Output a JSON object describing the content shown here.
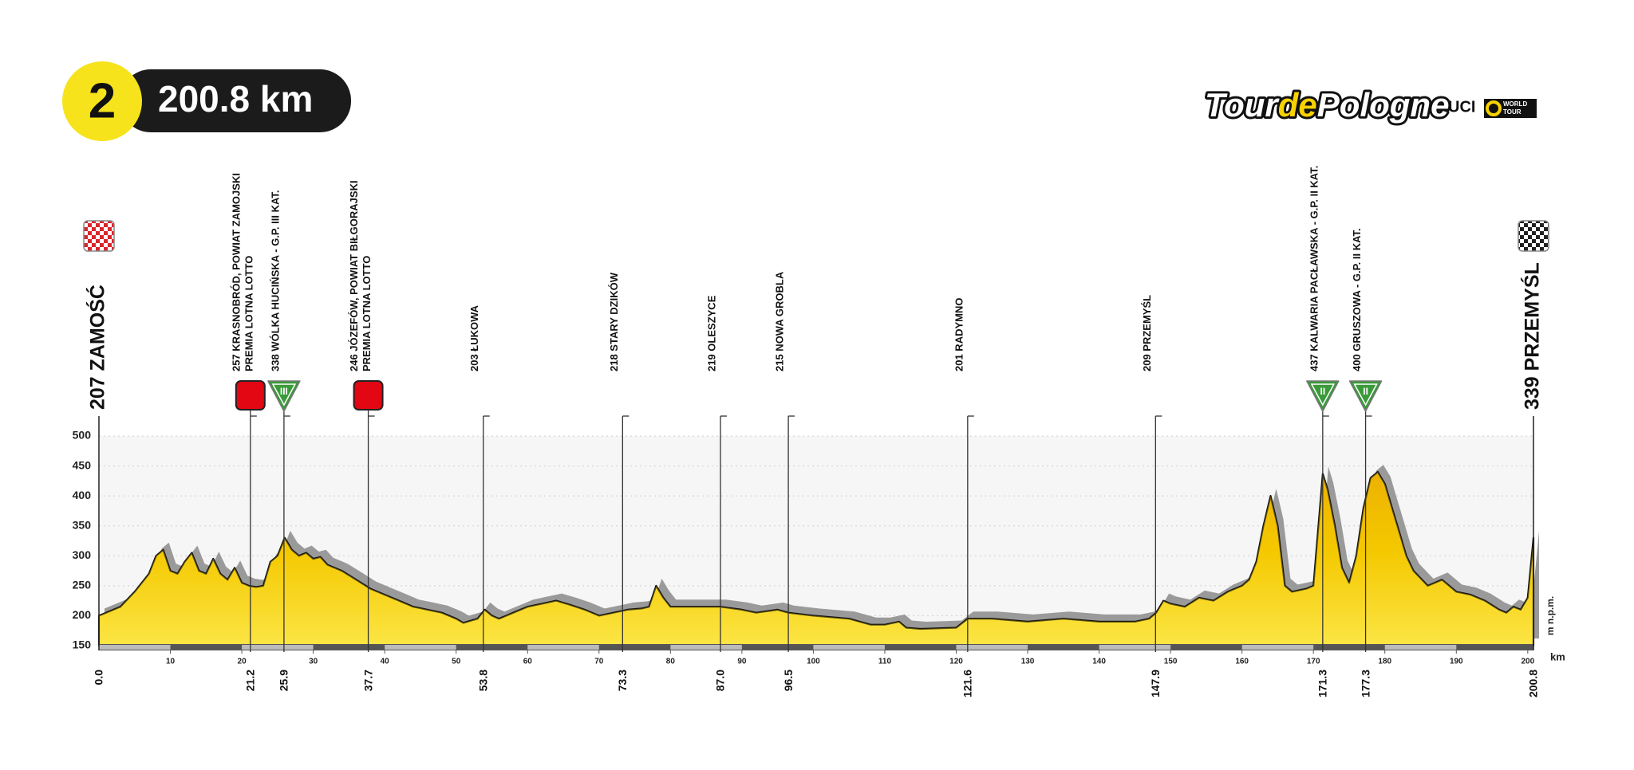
{
  "header": {
    "stage": "2",
    "distance": "200.8 km"
  },
  "logo": {
    "tour": "Tour",
    "de": "de",
    "pologne": "Pologne",
    "uci": "UCI",
    "world": "WORLD",
    "tour_word": "TOUR"
  },
  "chart_data": {
    "type": "area",
    "color": "#f7d200",
    "shadow_color": "#9a9a9a",
    "grid": true,
    "xlim": [
      0,
      200.8
    ],
    "xticks": [
      10,
      20,
      30,
      40,
      50,
      60,
      70,
      80,
      90,
      100,
      110,
      120,
      130,
      140,
      150,
      160,
      170,
      180,
      190,
      200
    ],
    "ylim": [
      150,
      500
    ],
    "yticks": [
      150,
      200,
      250,
      300,
      350,
      400,
      450,
      500
    ],
    "y_unit": "m n.p.m.",
    "x_unit": "km",
    "x": [
      0,
      3,
      5,
      7,
      8,
      9,
      10,
      11,
      12,
      13,
      14,
      15,
      16,
      17,
      18,
      19,
      20,
      21,
      22,
      23,
      24,
      25,
      26,
      27,
      28,
      29,
      30,
      31,
      32,
      34,
      36,
      38,
      40,
      42,
      44,
      46,
      48,
      50,
      51,
      53,
      54,
      55,
      56,
      58,
      60,
      62,
      64,
      66,
      68,
      70,
      72,
      74,
      76,
      77,
      78,
      79,
      80,
      84,
      87,
      90,
      92,
      95,
      96.5,
      100,
      105,
      108,
      110,
      112,
      113,
      115,
      120,
      121.6,
      125,
      130,
      135,
      140,
      145,
      147,
      148,
      149,
      150,
      152,
      154,
      156,
      158,
      160,
      161,
      162,
      163,
      164,
      165,
      166,
      167,
      169,
      170,
      171.3,
      172,
      173,
      174,
      175,
      176,
      177,
      178,
      179,
      180,
      181,
      182,
      183,
      184,
      186,
      188,
      190,
      192,
      194,
      196,
      197,
      198,
      199,
      200,
      200.8
    ],
    "values": [
      200,
      215,
      240,
      270,
      300,
      310,
      275,
      270,
      290,
      305,
      275,
      270,
      295,
      270,
      260,
      280,
      255,
      250,
      248,
      250,
      290,
      300,
      330,
      310,
      300,
      305,
      295,
      298,
      285,
      275,
      260,
      245,
      235,
      225,
      215,
      210,
      205,
      195,
      188,
      195,
      210,
      200,
      195,
      205,
      215,
      220,
      225,
      218,
      210,
      200,
      205,
      210,
      212,
      215,
      250,
      230,
      215,
      215,
      215,
      210,
      205,
      210,
      205,
      200,
      195,
      185,
      185,
      190,
      180,
      178,
      180,
      195,
      195,
      190,
      195,
      190,
      190,
      195,
      205,
      225,
      220,
      215,
      230,
      225,
      240,
      250,
      260,
      290,
      350,
      400,
      350,
      250,
      240,
      245,
      250,
      437,
      410,
      350,
      280,
      255,
      300,
      380,
      430,
      440,
      420,
      380,
      340,
      300,
      275,
      250,
      260,
      240,
      235,
      225,
      210,
      205,
      215,
      210,
      230,
      330
    ],
    "start": {
      "label": "207 ZAMOŚĆ",
      "km": {
        "value": 0,
        "label": "0.0"
      }
    },
    "finish": {
      "label": "339 PRZEMYŚL",
      "km": 200.8
    },
    "waypoints": [
      {
        "km": 21.2,
        "lines": [
          "257 KRASNOBRÓD, POWIAT ZAMOJSKI",
          "PREMIA LOTNA LOTTO"
        ],
        "icon": "sprint"
      },
      {
        "km": 25.9,
        "lines": [
          "338 WÓLKA HUCIŃSKA - G.P. III KAT."
        ],
        "icon": "climb",
        "category": "III"
      },
      {
        "km": 37.7,
        "lines": [
          "246 JÓZEFÓW, POWIAT BIŁGORAJSKI",
          "PREMIA LOTNA LOTTO"
        ],
        "icon": "sprint"
      },
      {
        "km": 53.8,
        "lines": [
          "203 ŁUKOWA"
        ]
      },
      {
        "km": 73.3,
        "lines": [
          "218 STARY DZIKÓW"
        ]
      },
      {
        "km": {
          "value": 87,
          "label": "87.0"
        },
        "lines": [
          "219 OLESZYCE"
        ]
      },
      {
        "km": 96.5,
        "lines": [
          "215 NOWA GROBLA"
        ]
      },
      {
        "km": 121.6,
        "lines": [
          "201 RADYMNO"
        ]
      },
      {
        "km": 147.9,
        "lines": [
          "209 PRZEMYŚL"
        ]
      },
      {
        "km": 171.3,
        "lines": [
          "437 KALWARIA PACŁAWSKA - G.P. II KAT."
        ],
        "icon": "climb",
        "category": "II"
      },
      {
        "km": 177.3,
        "lines": [
          "400 GRUSZOWA - G.P. II KAT."
        ],
        "icon": "climb",
        "category": "II"
      }
    ]
  }
}
